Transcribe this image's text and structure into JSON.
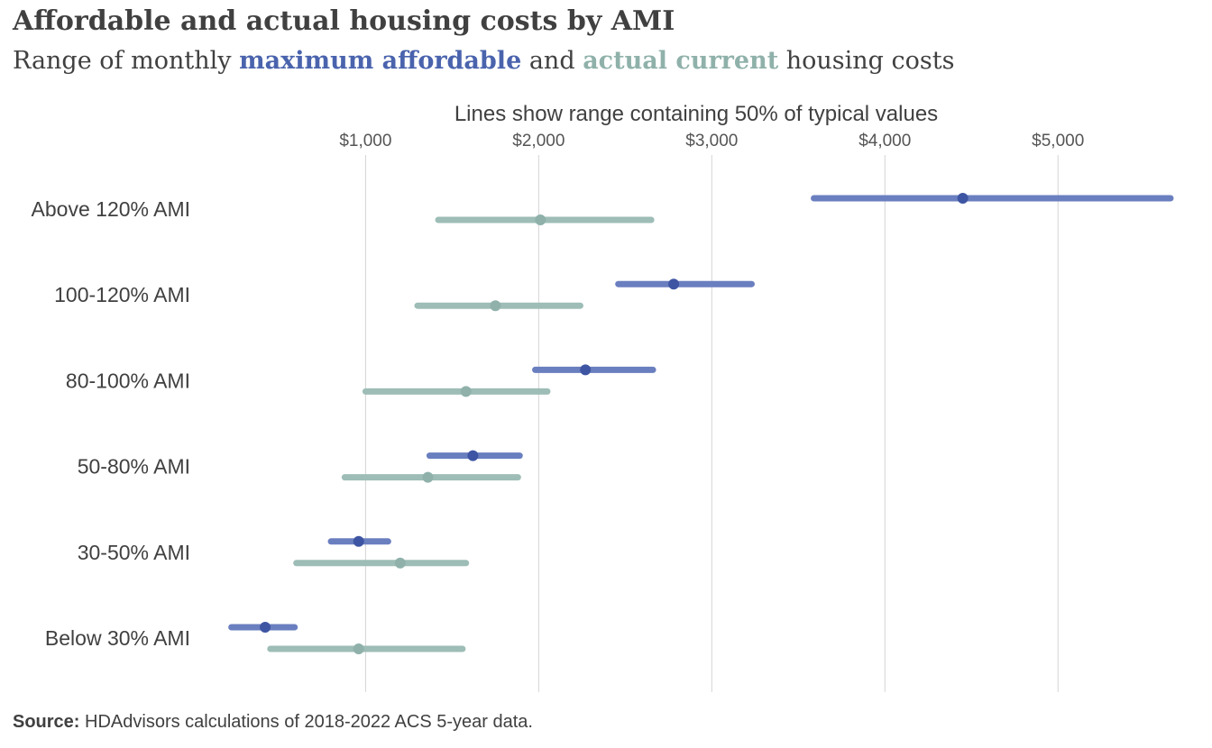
{
  "header": {
    "title": "Affordable and actual housing costs  by AMI",
    "subtitle_pre": "Range of monthly ",
    "subtitle_blue": "maximum affordable",
    "subtitle_mid": " and ",
    "subtitle_teal": "actual current",
    "subtitle_post": " housing costs"
  },
  "footer": {
    "source_label": "Source:",
    "source_text": " HDAdvisors  calculations of 2018-2022  ACS 5-year  data."
  },
  "chart_data": {
    "type": "range-dot",
    "title": "Affordable and actual housing costs  by AMI",
    "subtitle": "Range of monthly maximum affordable and actual current housing costs",
    "xlabel": "Lines show range containing 50% of typical values",
    "x_ticks": [
      1000,
      2000,
      3000,
      4000,
      5000
    ],
    "x_tick_labels": [
      "$1,000",
      "$2,000",
      "$3,000",
      "$4,000",
      "$5,000"
    ],
    "xlim": [
      180,
      5650
    ],
    "grid": true,
    "categories": [
      "Above 120% AMI",
      "100-120% AMI",
      "80-100% AMI",
      "50-80% AMI",
      "30-50% AMI",
      "Below 30% AMI"
    ],
    "series": [
      {
        "name": "maximum affordable",
        "color": "#6a7fbf",
        "dot_color": "#3e55a3",
        "low": [
          3590,
          2460,
          1980,
          1370,
          800,
          225
        ],
        "median": [
          4450,
          2780,
          2270,
          1620,
          960,
          420
        ],
        "high": [
          5650,
          3230,
          2660,
          1890,
          1130,
          590
        ]
      },
      {
        "name": "actual current",
        "color": "#9dbdb6",
        "dot_color": "#8fb1aa",
        "low": [
          1420,
          1300,
          1000,
          880,
          600,
          450
        ],
        "median": [
          2010,
          1750,
          1580,
          1360,
          1200,
          960
        ],
        "high": [
          2650,
          2240,
          2050,
          1880,
          1580,
          1560
        ]
      }
    ]
  }
}
